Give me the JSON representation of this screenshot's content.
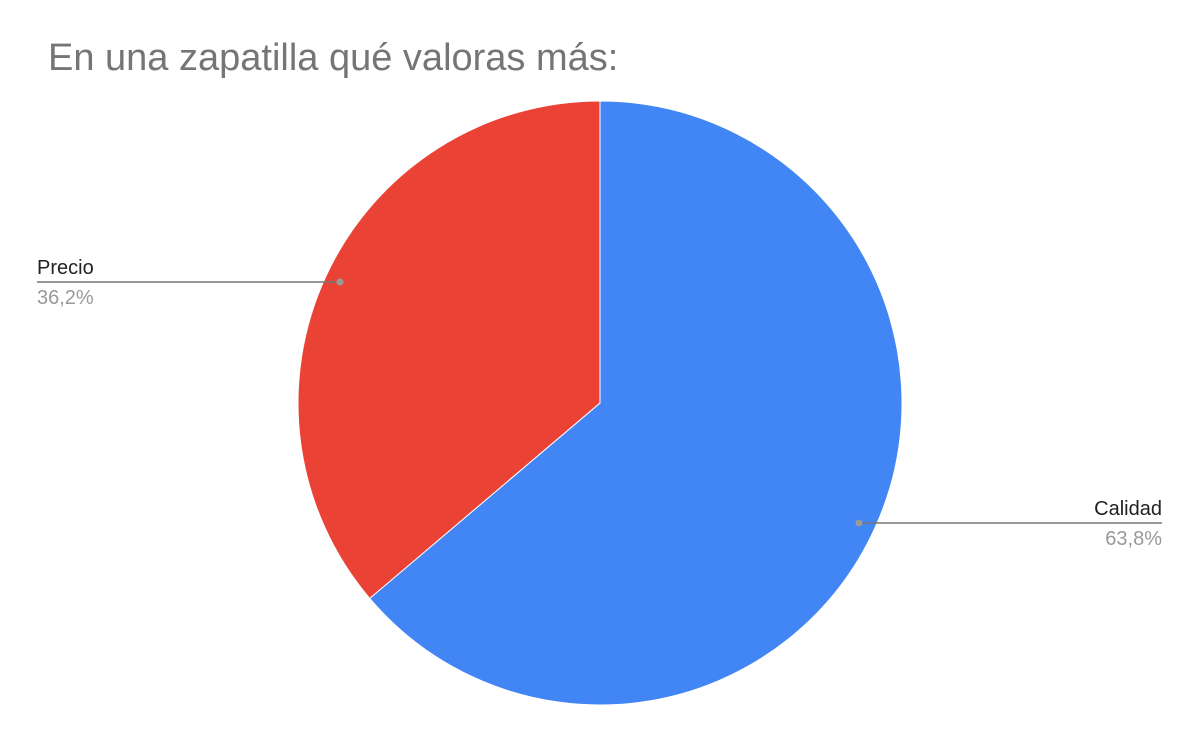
{
  "chart_data": {
    "type": "pie",
    "title": "En una zapatilla qué valoras más:",
    "categories": [
      "Calidad",
      "Precio"
    ],
    "values": [
      63.8,
      36.2
    ],
    "value_labels": [
      "63,8%",
      "36,2%"
    ],
    "colors": [
      "#4285f4",
      "#ea4335"
    ]
  }
}
